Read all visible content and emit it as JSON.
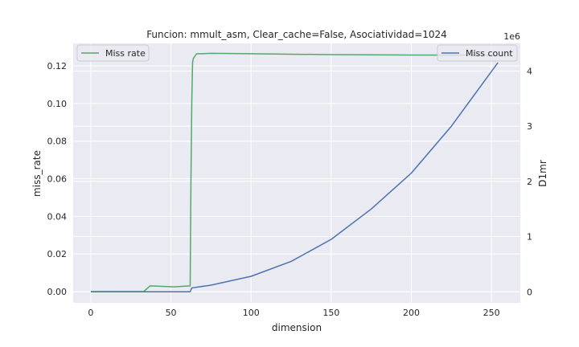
{
  "chart_data": {
    "type": "line",
    "title": "Funcion: mmult_asm, Clear_cache=False, Asociatividad=1024",
    "xlabel": "dimension",
    "ylabel_left": "miss_rate",
    "ylabel_right": "D1mr",
    "right_offset_text": "1e6",
    "xlim": [
      -11,
      268
    ],
    "ylim_left": [
      -0.006,
      0.132
    ],
    "ylim_right": [
      -0.2,
      4.5
    ],
    "x_ticks": [
      0,
      50,
      100,
      150,
      200,
      250
    ],
    "y_ticks_left": [
      "0.00",
      "0.02",
      "0.04",
      "0.06",
      "0.08",
      "0.10",
      "0.12"
    ],
    "y_ticks_right": [
      "0",
      "1",
      "2",
      "3",
      "4"
    ],
    "grid": true,
    "legend_left_position": "upper-left",
    "legend_right_position": "upper-right",
    "series": [
      {
        "name": "Miss rate",
        "axis": "left",
        "color": "#55a868",
        "x": [
          0,
          33,
          37,
          52,
          62,
          62.5,
          63,
          63.5,
          64,
          66,
          70,
          75,
          100,
          150,
          200,
          254
        ],
        "y": [
          0.0,
          0.0,
          0.003,
          0.0025,
          0.003,
          0.06,
          0.1,
          0.122,
          0.124,
          0.1265,
          0.1265,
          0.1267,
          0.1265,
          0.126,
          0.1258,
          0.1257
        ]
      },
      {
        "name": "Miss count",
        "axis": "right",
        "color": "#4c72b0",
        "x": [
          0,
          62,
          63,
          75,
          100,
          125,
          150,
          175,
          200,
          225,
          254
        ],
        "y": [
          0.0,
          0.0,
          0.07,
          0.12,
          0.28,
          0.55,
          0.95,
          1.5,
          2.15,
          3.0,
          4.15
        ]
      }
    ]
  }
}
